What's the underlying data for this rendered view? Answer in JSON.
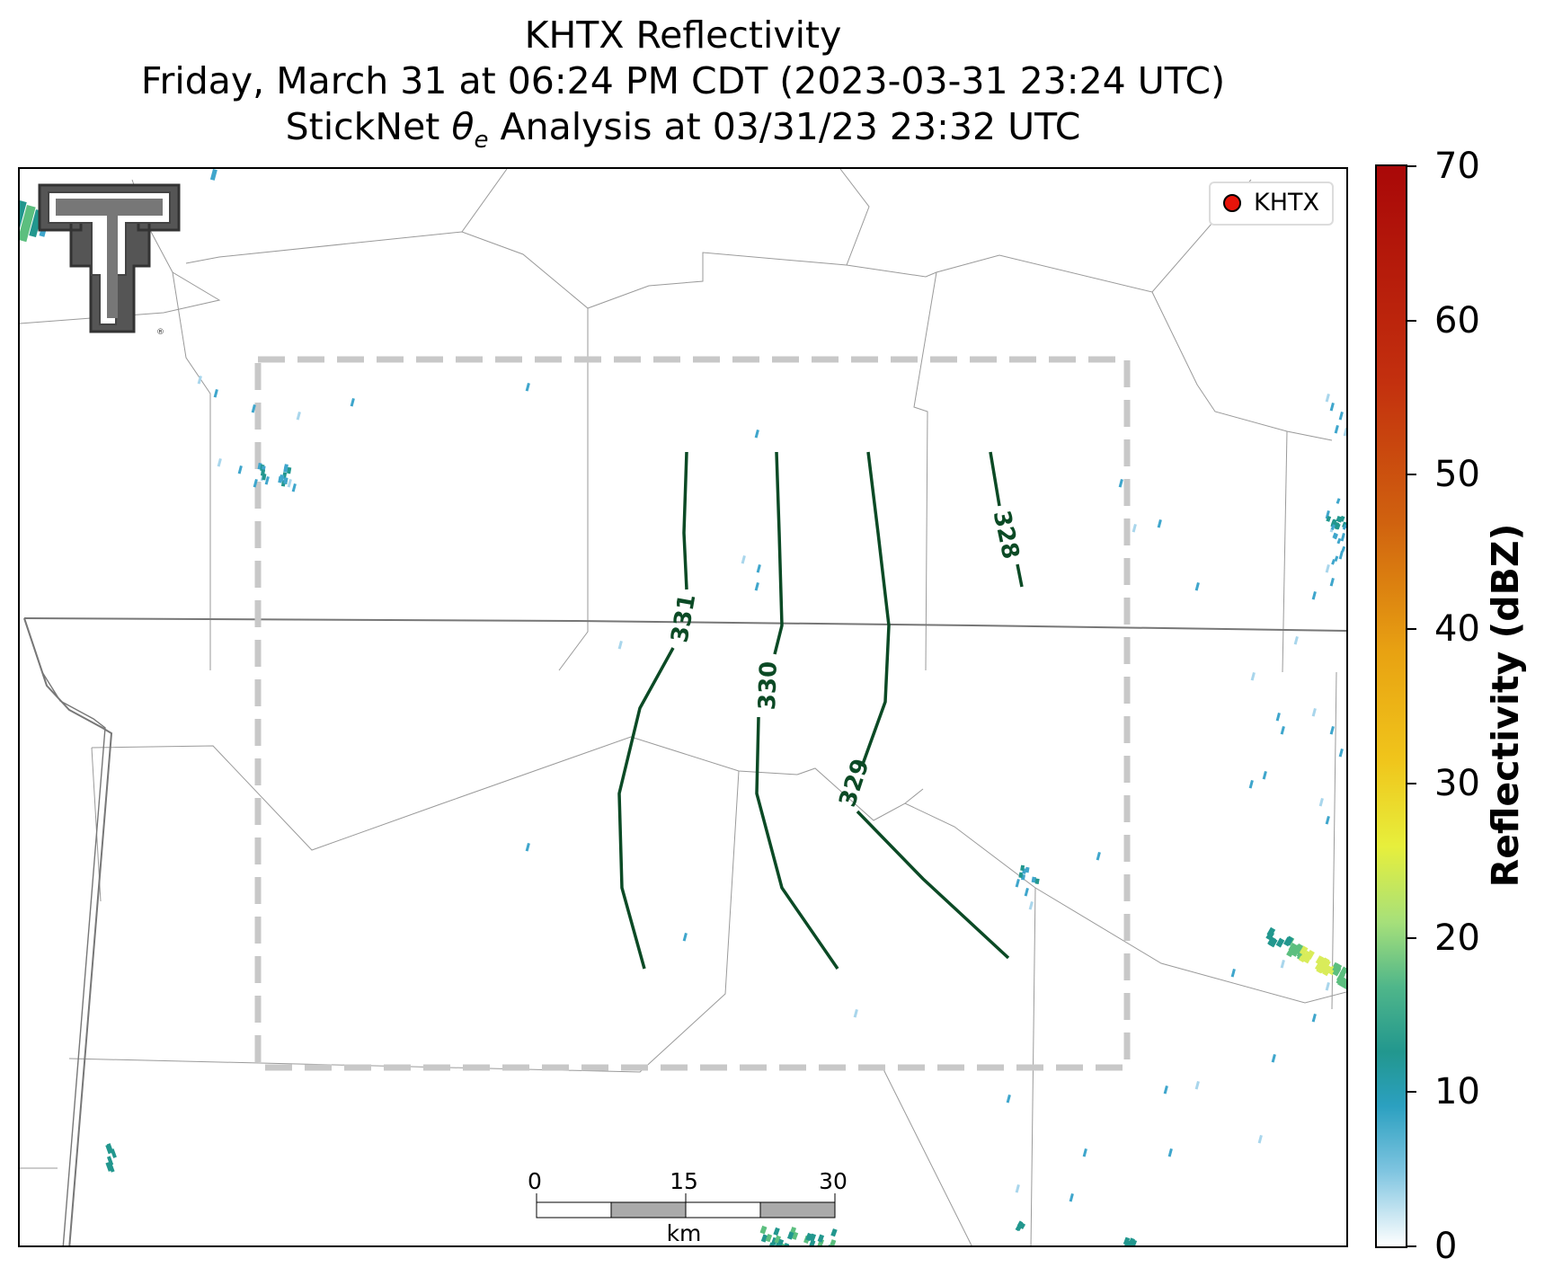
{
  "titles": {
    "line1": "KHTX Reflectivity",
    "line2": "Friday, March 31 at 06:24 PM CDT (2023-03-31 23:24 UTC)",
    "line3_prefix": "StickNet ",
    "line3_theta": "θ",
    "line3_sub": "e",
    "line3_suffix": " Analysis at 03/31/23 23:32 UTC"
  },
  "legend": {
    "label": "KHTX",
    "marker_color": "#e8140a"
  },
  "colorbar": {
    "label": "Reflectivity (dBZ)",
    "ticks": [
      "0",
      "10",
      "20",
      "30",
      "40",
      "50",
      "60",
      "70"
    ],
    "range": [
      0,
      70
    ],
    "colormap": [
      "#ffffff",
      "#2ba0c0",
      "#4fb68a",
      "#e7ef3c",
      "#e8a212",
      "#c3300e",
      "#a90808"
    ]
  },
  "contours": {
    "color": "#0b4a25",
    "labels": [
      "331",
      "330",
      "329",
      "328"
    ]
  },
  "scale_bar": {
    "ticks": [
      "0",
      "15",
      "30"
    ],
    "unit": "km"
  },
  "colors": {
    "boundary": "#8c8c8c",
    "analysis_box": "#c8c8c8",
    "contour": "#0b4a25"
  },
  "logo": {
    "name": "texas-tech-double-t-logo"
  }
}
